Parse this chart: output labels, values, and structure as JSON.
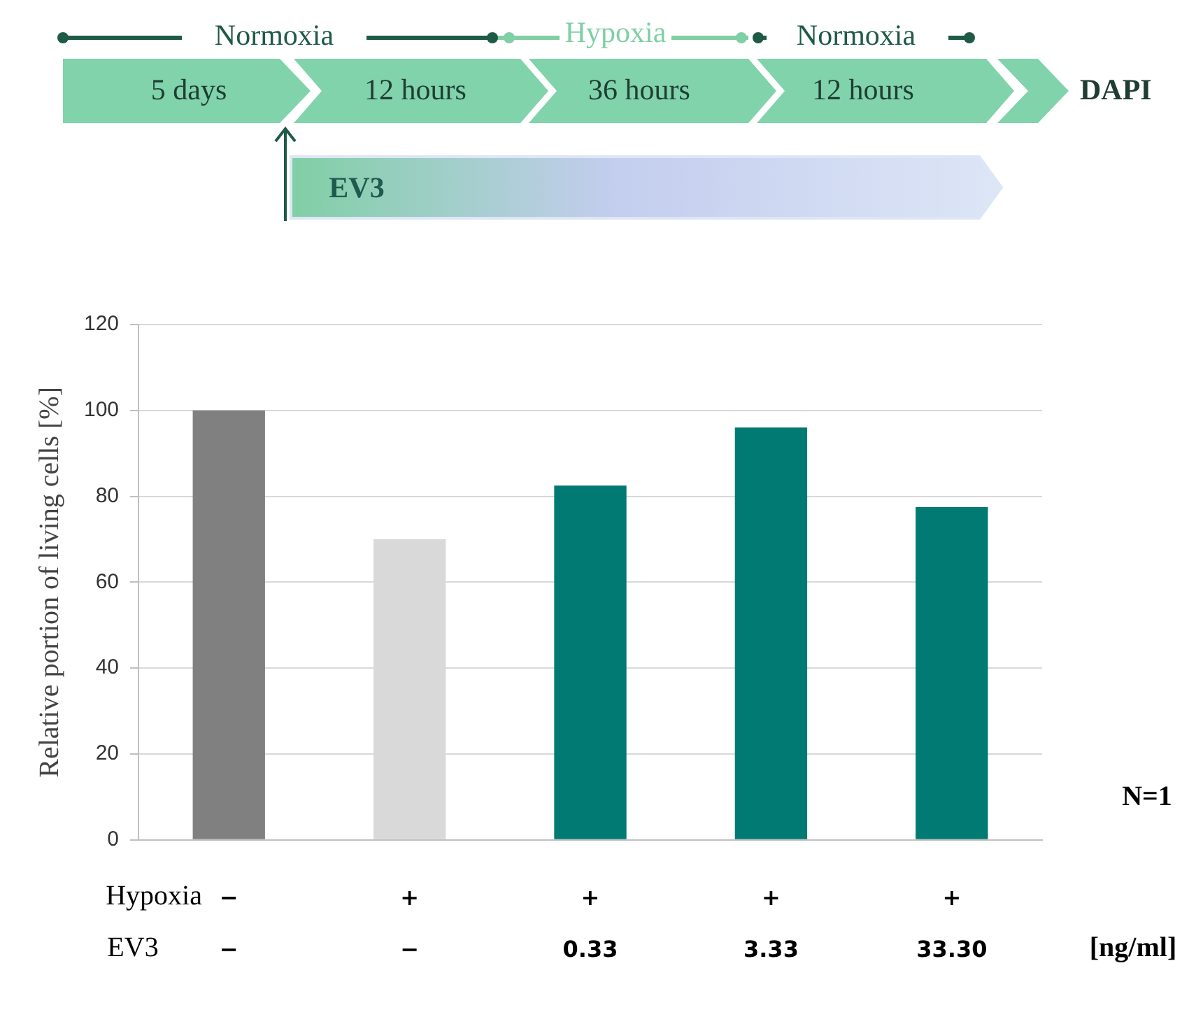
{
  "chart_data": {
    "type": "bar",
    "ylabel": "Relative portion of living cells [%]",
    "categories": [
      "−\n−",
      "+\n−",
      "+\n0.33",
      "+\n3.33",
      "+\n33.30"
    ],
    "values": [
      100,
      70,
      82.5,
      96,
      77.5
    ],
    "colors": [
      "#808080",
      "#d9d9d9",
      "#007a73",
      "#007a73",
      "#007a73"
    ],
    "ylim": [
      0,
      120
    ],
    "yticks": [
      0,
      20,
      40,
      60,
      80,
      100,
      120
    ],
    "grid": "y",
    "legend": false,
    "annotations": [
      "Normoxia",
      "Hypoxia",
      "Normoxia",
      "5 days",
      "12 hours",
      "36 hours",
      "12 hours",
      "DAPI",
      "EV3",
      "Hypoxia",
      "EV3",
      "[ng/ml]",
      "N=1"
    ]
  }
}
